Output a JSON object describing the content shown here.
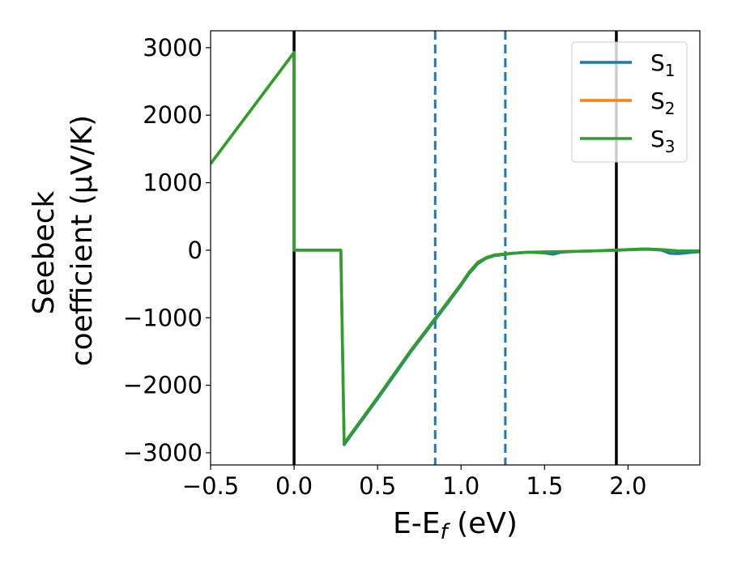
{
  "chart_data": {
    "type": "line",
    "xlabel_main": "E-E",
    "xlabel_sub": "f",
    "xlabel_unit": " (eV)",
    "ylabel_line1": "Seebeck",
    "ylabel_line2": "coefficient  (μV/K)",
    "xlim": [
      -0.5,
      2.43
    ],
    "ylim": [
      -3180,
      3250
    ],
    "xticks": [
      -0.5,
      0.0,
      0.5,
      1.0,
      1.5,
      2.0
    ],
    "xtick_labels": [
      "−0.5",
      "0.0",
      "0.5",
      "1.0",
      "1.5",
      "2.0"
    ],
    "yticks": [
      3000,
      2000,
      1000,
      0,
      -1000,
      -2000,
      -3000
    ],
    "ytick_labels": [
      "3000",
      "2000",
      "1000",
      "0",
      "−1000",
      "−2000",
      "−3000"
    ],
    "grid": false,
    "legend_position": "top-right",
    "vlines": [
      {
        "x": 0.0,
        "style": "solid",
        "color": "#000000"
      },
      {
        "x": 0.845,
        "style": "dashed",
        "color": "#1f77b4"
      },
      {
        "x": 1.265,
        "style": "dashed",
        "color": "#1f77b4"
      },
      {
        "x": 1.93,
        "style": "solid",
        "color": "#000000"
      }
    ],
    "series": [
      {
        "name_main": "S",
        "name_sub": "1",
        "color": "#1f77b4",
        "x": [
          -0.5,
          0.0,
          0.0,
          0.28,
          0.28,
          0.3,
          0.5,
          0.7,
          0.9,
          1.0,
          1.05,
          1.1,
          1.15,
          1.2,
          1.3,
          1.4,
          1.5,
          1.55,
          1.6,
          1.7,
          1.8,
          1.9,
          2.0,
          2.1,
          2.15,
          2.2,
          2.25,
          2.3,
          2.43
        ],
        "y": [
          1280,
          2930,
          0,
          0,
          -20,
          -2880,
          -2200,
          -1500,
          -850,
          -520,
          -340,
          -200,
          -120,
          -80,
          -50,
          -30,
          -40,
          -60,
          -30,
          -15,
          -10,
          -5,
          5,
          15,
          10,
          0,
          -45,
          -50,
          -20
        ]
      },
      {
        "name_main": "S",
        "name_sub": "2",
        "color": "#ff7f0e",
        "x": [
          -0.5,
          0.0,
          0.0,
          0.28,
          0.28,
          0.3,
          0.5,
          0.7,
          0.9,
          1.0,
          1.05,
          1.1,
          1.15,
          1.2,
          1.3,
          1.4,
          1.5,
          1.6,
          1.7,
          1.8,
          1.9,
          2.0,
          2.1,
          2.2,
          2.3,
          2.43
        ],
        "y": [
          1280,
          2930,
          0,
          0,
          -20,
          -2860,
          -2180,
          -1480,
          -830,
          -500,
          -320,
          -180,
          -110,
          -70,
          -45,
          -30,
          -25,
          -20,
          -15,
          -10,
          0,
          10,
          20,
          10,
          -10,
          -10
        ]
      },
      {
        "name_main": "S",
        "name_sub": "3",
        "color": "#2ca02c",
        "x": [
          -0.5,
          0.0,
          0.0,
          0.28,
          0.28,
          0.3,
          0.5,
          0.7,
          0.9,
          1.0,
          1.05,
          1.1,
          1.15,
          1.2,
          1.3,
          1.4,
          1.5,
          1.6,
          1.7,
          1.8,
          1.9,
          2.0,
          2.1,
          2.2,
          2.3,
          2.43
        ],
        "y": [
          1280,
          2930,
          0,
          0,
          -20,
          -2860,
          -2180,
          -1480,
          -830,
          -500,
          -320,
          -180,
          -110,
          -70,
          -45,
          -30,
          -25,
          -20,
          -15,
          -10,
          0,
          10,
          20,
          10,
          -10,
          -10
        ]
      }
    ]
  }
}
